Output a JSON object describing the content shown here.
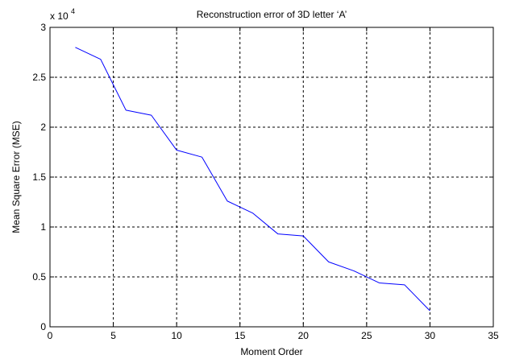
{
  "chart_data": {
    "type": "line",
    "title": "Reconstruction error of 3D letter ‘A’",
    "xlabel": "Moment Order",
    "ylabel": "Mean Square Error (MSE)",
    "y_multiplier": {
      "base": "x 10",
      "exponent": "4"
    },
    "xlim": [
      0,
      35
    ],
    "ylim": [
      0,
      3
    ],
    "xticks": [
      0,
      5,
      10,
      15,
      20,
      25,
      30,
      35
    ],
    "yticks": [
      0,
      0.5,
      1,
      1.5,
      2,
      2.5,
      3
    ],
    "xtick_labels": [
      "0",
      "5",
      "10",
      "15",
      "20",
      "25",
      "30",
      "35"
    ],
    "ytick_labels": [
      "0",
      "0.5",
      "1",
      "1.5",
      "2",
      "2.5",
      "3"
    ],
    "grid": true,
    "series": [
      {
        "color": "#0000ff",
        "x": [
          2,
          4,
          6,
          8,
          10,
          12,
          14,
          16,
          18,
          20,
          22,
          24,
          26,
          28,
          30
        ],
        "y": [
          2.8,
          2.68,
          2.17,
          2.12,
          1.77,
          1.7,
          1.26,
          1.14,
          0.93,
          0.91,
          0.65,
          0.56,
          0.44,
          0.42,
          0.16
        ]
      }
    ]
  }
}
